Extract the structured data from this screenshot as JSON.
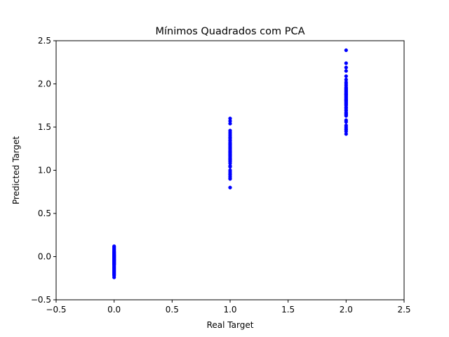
{
  "chart_data": {
    "type": "scatter",
    "title": "Mínimos Quadrados com PCA",
    "xlabel": "Real Target",
    "ylabel": "Predicted Target",
    "xlim": [
      -0.5,
      2.5
    ],
    "ylim": [
      -0.5,
      2.5
    ],
    "xticks": [
      -0.5,
      0.0,
      0.5,
      1.0,
      1.5,
      2.0,
      2.5
    ],
    "yticks": [
      -0.5,
      0.0,
      0.5,
      1.0,
      1.5,
      2.0,
      2.5
    ],
    "xtick_labels": [
      "−0.5",
      "0.0",
      "0.5",
      "1.0",
      "1.5",
      "2.0",
      "2.5"
    ],
    "ytick_labels": [
      "−0.5",
      "0.0",
      "0.5",
      "1.0",
      "1.5",
      "2.0",
      "2.5"
    ],
    "grid": false,
    "marker_color": "#0000ff",
    "series": [
      {
        "x": [
          0,
          0,
          0,
          0,
          0,
          0,
          0,
          0,
          0,
          0,
          0,
          0,
          0,
          0,
          0,
          0,
          0,
          0,
          0,
          0,
          0,
          0,
          0,
          0,
          0,
          0,
          0,
          0,
          0,
          0,
          0,
          0,
          0,
          0,
          0,
          0,
          0,
          0,
          0,
          0,
          0,
          0,
          0,
          0,
          0,
          0,
          0,
          0,
          0,
          0,
          1,
          1,
          1,
          1,
          1,
          1,
          1,
          1,
          1,
          1,
          1,
          1,
          1,
          1,
          1,
          1,
          1,
          1,
          1,
          1,
          1,
          1,
          1,
          1,
          1,
          1,
          1,
          1,
          1,
          1,
          1,
          1,
          1,
          1,
          1,
          1,
          1,
          1,
          1,
          1,
          1,
          1,
          1,
          1,
          1,
          1,
          1,
          1,
          1,
          1,
          2,
          2,
          2,
          2,
          2,
          2,
          2,
          2,
          2,
          2,
          2,
          2,
          2,
          2,
          2,
          2,
          2,
          2,
          2,
          2,
          2,
          2,
          2,
          2,
          2,
          2,
          2,
          2,
          2,
          2,
          2,
          2,
          2,
          2,
          2,
          2,
          2,
          2,
          2,
          2,
          2,
          2,
          2,
          2,
          2,
          2,
          2,
          2,
          2,
          2
        ],
        "y": [
          0.12,
          0.11,
          0.1,
          0.09,
          0.08,
          0.07,
          0.06,
          0.05,
          0.05,
          0.04,
          0.03,
          0.03,
          0.02,
          0.02,
          0.01,
          0.01,
          0.0,
          0.0,
          -0.01,
          -0.01,
          -0.02,
          -0.02,
          -0.03,
          -0.03,
          -0.04,
          -0.04,
          -0.05,
          -0.05,
          -0.06,
          -0.06,
          -0.07,
          -0.07,
          -0.08,
          -0.08,
          -0.09,
          -0.09,
          -0.1,
          -0.11,
          -0.12,
          -0.13,
          -0.14,
          -0.15,
          -0.16,
          -0.17,
          -0.18,
          -0.19,
          -0.2,
          -0.21,
          -0.22,
          -0.24,
          1.6,
          1.57,
          1.54,
          1.46,
          1.44,
          1.42,
          1.4,
          1.38,
          1.37,
          1.35,
          1.34,
          1.32,
          1.31,
          1.3,
          1.28,
          1.27,
          1.26,
          1.25,
          1.24,
          1.23,
          1.22,
          1.21,
          1.2,
          1.19,
          1.18,
          1.17,
          1.16,
          1.15,
          1.14,
          1.13,
          1.12,
          1.11,
          1.1,
          1.08,
          1.05,
          1.04,
          1.0,
          0.98,
          0.96,
          0.95,
          0.93,
          0.91,
          0.9,
          1.29,
          1.21,
          1.19,
          1.16,
          1.14,
          1.12,
          0.8,
          2.39,
          2.24,
          2.19,
          2.15,
          2.09,
          2.05,
          2.02,
          2.0,
          1.98,
          1.96,
          1.95,
          1.94,
          1.93,
          1.92,
          1.91,
          1.9,
          1.89,
          1.88,
          1.87,
          1.86,
          1.85,
          1.84,
          1.83,
          1.82,
          1.81,
          1.8,
          1.79,
          1.78,
          1.77,
          1.76,
          1.75,
          1.73,
          1.72,
          1.7,
          1.69,
          1.67,
          1.66,
          1.65,
          1.64,
          1.63,
          1.58,
          1.56,
          1.52,
          1.5,
          1.48,
          1.47,
          1.45,
          1.42,
          1.88,
          1.81
        ]
      }
    ]
  }
}
